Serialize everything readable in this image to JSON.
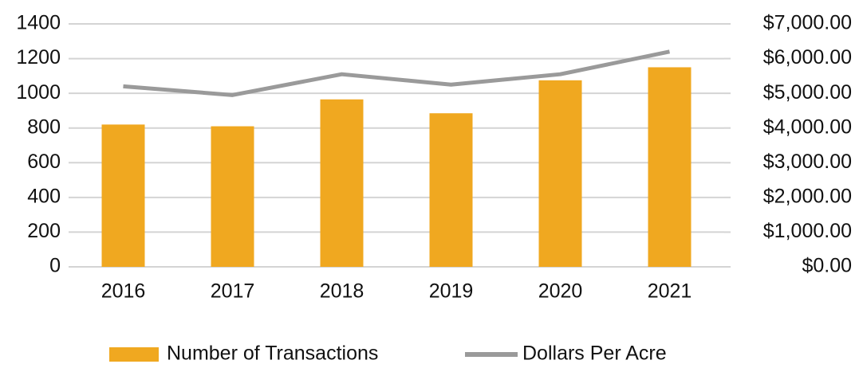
{
  "chart_data": {
    "type": "bar",
    "categories": [
      "2016",
      "2017",
      "2018",
      "2019",
      "2020",
      "2021"
    ],
    "series": [
      {
        "name": "Number of Transactions",
        "type": "bar",
        "color": "#f0a820",
        "values": [
          820,
          810,
          965,
          885,
          1075,
          1150
        ]
      },
      {
        "name": "Dollars Per Acre",
        "type": "line",
        "color": "#9a9a9a",
        "axis": "y2",
        "values": [
          5200,
          4950,
          5550,
          5250,
          5550,
          6200
        ]
      }
    ],
    "ylim": [
      0,
      1400
    ],
    "yticks": [
      0,
      200,
      400,
      600,
      800,
      1000,
      1200,
      1400
    ],
    "y2lim": [
      0,
      7000
    ],
    "y2ticks": [
      {
        "value": 0,
        "label": "$0.00"
      },
      {
        "value": 1000,
        "label": "$1,000.00"
      },
      {
        "value": 2000,
        "label": "$2,000.00"
      },
      {
        "value": 3000,
        "label": "$3,000.00"
      },
      {
        "value": 4000,
        "label": "$4,000.00"
      },
      {
        "value": 5000,
        "label": "$5,000.00"
      },
      {
        "value": 6000,
        "label": "$6,000.00"
      },
      {
        "value": 7000,
        "label": "$7,000.00"
      }
    ],
    "grid": true,
    "legend": "bottom"
  }
}
